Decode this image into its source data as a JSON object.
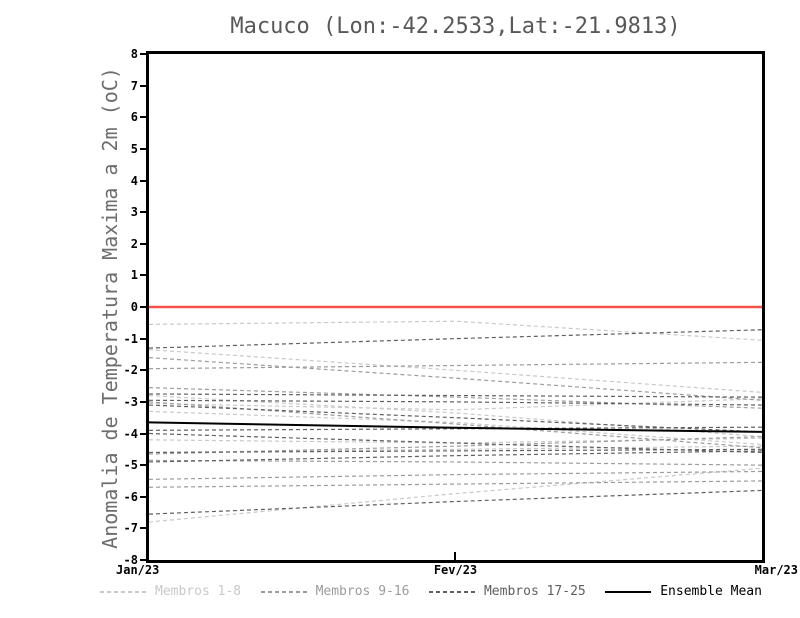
{
  "title": "Macuco (Lon:-42.2533,Lat:-21.9813)",
  "y_axis": {
    "label": "Anomalia de Temperatura Maxima a 2m (oC)",
    "ticks": [
      8,
      7,
      6,
      5,
      4,
      3,
      2,
      1,
      0,
      -1,
      -2,
      -3,
      -4,
      -5,
      -6,
      -7,
      -8
    ]
  },
  "x_axis": {
    "ticks": [
      "Jan/23",
      "Fev/23",
      "Mar/23"
    ]
  },
  "colors": {
    "zero_line": "#f4524a",
    "frame": "#000000",
    "title_text": "#585858",
    "axis_label_text": "#6e6e6e"
  },
  "legend": {
    "items": [
      {
        "label": "Membros 1-8",
        "color": "#c9c9c9",
        "style": "dashed"
      },
      {
        "label": "Membros 9-16",
        "color": "#9c9c9c",
        "style": "dashed"
      },
      {
        "label": "Membros 17-25",
        "color": "#606060",
        "style": "dashed"
      },
      {
        "label": "Ensemble Mean",
        "color": "#000000",
        "style": "solid"
      }
    ]
  },
  "chart_data": {
    "type": "line",
    "title": "Macuco (Lon:-42.2533,Lat:-21.9813)",
    "xlabel": "",
    "ylabel": "Anomalia de Temperatura Maxima a 2m (oC)",
    "x": [
      "Jan/23",
      "Fev/23",
      "Mar/23"
    ],
    "ylim": [
      -8,
      8
    ],
    "grid": false,
    "zero_line": 0,
    "legend_position": "bottom",
    "groups": [
      {
        "name": "Membros 1-8",
        "color": "#c9c9c9",
        "dashed": true,
        "members": [
          [
            -0.55,
            -0.45,
            -1.05
          ],
          [
            -1.35,
            -2.0,
            -2.7
          ],
          [
            -2.8,
            -3.35,
            -4.1
          ],
          [
            -3.05,
            -3.25,
            -2.9
          ],
          [
            -4.2,
            -4.3,
            -4.15
          ],
          [
            -4.6,
            -4.5,
            -4.4
          ],
          [
            -6.8,
            -5.9,
            -5.1
          ],
          [
            -3.3,
            -3.65,
            -4.35
          ]
        ]
      },
      {
        "name": "Membros 9-16",
        "color": "#9c9c9c",
        "dashed": true,
        "members": [
          [
            -1.6,
            -2.25,
            -2.95
          ],
          [
            -1.95,
            -1.85,
            -1.75
          ],
          [
            -2.55,
            -2.85,
            -3.2
          ],
          [
            -3.0,
            -3.7,
            -4.45
          ],
          [
            -4.65,
            -4.4,
            -4.1
          ],
          [
            -5.45,
            -5.3,
            -5.2
          ],
          [
            -5.7,
            -5.6,
            -5.5
          ],
          [
            -4.85,
            -4.9,
            -5.0
          ]
        ]
      },
      {
        "name": "Membros 17-25",
        "color": "#606060",
        "dashed": true,
        "members": [
          [
            -1.3,
            -1.0,
            -0.72
          ],
          [
            -2.75,
            -2.8,
            -2.85
          ],
          [
            -2.95,
            -3.0,
            -3.1
          ],
          [
            -3.1,
            -3.5,
            -3.95
          ],
          [
            -3.9,
            -3.85,
            -3.8
          ],
          [
            -4.0,
            -4.3,
            -4.6
          ],
          [
            -4.6,
            -4.55,
            -4.5
          ],
          [
            -4.9,
            -4.7,
            -4.55
          ],
          [
            -6.55,
            -6.15,
            -5.8
          ]
        ]
      }
    ],
    "ensemble_mean": {
      "name": "Ensemble Mean",
      "color": "#000000",
      "values": [
        -3.65,
        -3.82,
        -3.95
      ]
    }
  }
}
